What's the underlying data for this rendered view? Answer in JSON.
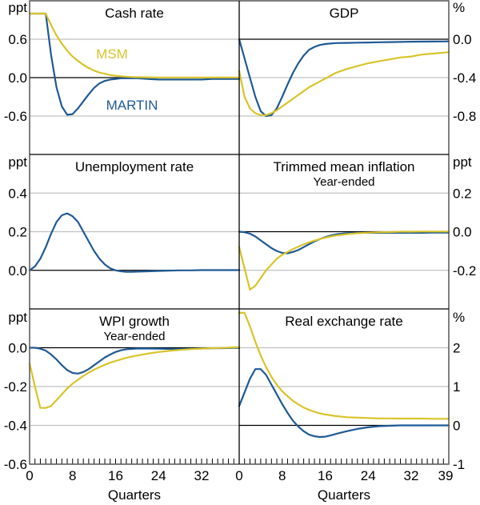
{
  "colors": {
    "martin": "#1f5a96",
    "msm": "#d9c42a",
    "grid": "#c0c0c0",
    "axis": "#000000",
    "frame": "#555555"
  },
  "chart_data": [
    {
      "type": "line",
      "panel": "top-left",
      "title": "Cash rate",
      "subtitle": "",
      "unit": "ppt",
      "unit_side": "left",
      "ylim": [
        -1.2,
        1.2
      ],
      "yticks": [
        0.6,
        0.0,
        -0.6
      ],
      "ytick_labels": [
        "0.6",
        "0.0",
        "-0.6"
      ],
      "grid": true,
      "annotations": [
        {
          "text": "MSM",
          "series": "MSM",
          "x": 15,
          "y": 0.6
        },
        {
          "text": "MARTIN",
          "series": "MARTIN",
          "x": 19,
          "y": -0.68
        }
      ],
      "x": [
        0,
        1,
        2,
        3,
        4,
        5,
        6,
        7,
        8,
        9,
        10,
        11,
        12,
        13,
        14,
        15,
        16,
        17,
        18,
        19,
        20,
        22,
        24,
        26,
        28,
        30,
        32,
        34,
        36,
        38,
        39
      ],
      "series": [
        {
          "name": "MARTIN",
          "values": [
            1.0,
            1.0,
            1.0,
            1.0,
            0.35,
            -0.15,
            -0.45,
            -0.58,
            -0.57,
            -0.48,
            -0.37,
            -0.26,
            -0.16,
            -0.09,
            -0.05,
            -0.03,
            -0.02,
            -0.01,
            -0.01,
            -0.01,
            -0.01,
            -0.02,
            -0.03,
            -0.03,
            -0.03,
            -0.03,
            -0.03,
            -0.02,
            -0.02,
            -0.02,
            -0.02
          ]
        },
        {
          "name": "MSM",
          "values": [
            1.0,
            1.0,
            1.0,
            1.0,
            0.82,
            0.66,
            0.53,
            0.42,
            0.33,
            0.26,
            0.2,
            0.15,
            0.11,
            0.08,
            0.06,
            0.04,
            0.03,
            0.02,
            0.015,
            0.01,
            0.008,
            0.005,
            0.003,
            0.002,
            0.002,
            0.002,
            0.002,
            0.002,
            0.002,
            0.002,
            0.002
          ]
        }
      ]
    },
    {
      "type": "line",
      "panel": "top-right",
      "title": "GDP",
      "subtitle": "",
      "unit": "%",
      "unit_side": "right",
      "ylim": [
        -1.2,
        0.4
      ],
      "yticks": [
        0.0,
        -0.4,
        -0.8
      ],
      "ytick_labels": [
        "0.0",
        "-0.4",
        "-0.8"
      ],
      "grid": true,
      "x": [
        0,
        1,
        2,
        3,
        4,
        5,
        6,
        7,
        8,
        9,
        10,
        11,
        12,
        13,
        14,
        15,
        16,
        17,
        18,
        20,
        22,
        24,
        26,
        28,
        30,
        32,
        34,
        36,
        38,
        39
      ],
      "series": [
        {
          "name": "MARTIN",
          "values": [
            0.0,
            -0.2,
            -0.4,
            -0.6,
            -0.75,
            -0.8,
            -0.79,
            -0.72,
            -0.6,
            -0.47,
            -0.35,
            -0.25,
            -0.17,
            -0.11,
            -0.08,
            -0.06,
            -0.05,
            -0.045,
            -0.04,
            -0.038,
            -0.036,
            -0.034,
            -0.032,
            -0.03,
            -0.028,
            -0.026,
            -0.025,
            -0.024,
            -0.023,
            -0.022
          ]
        },
        {
          "name": "MSM",
          "values": [
            -0.33,
            -0.6,
            -0.72,
            -0.77,
            -0.79,
            -0.79,
            -0.77,
            -0.74,
            -0.7,
            -0.66,
            -0.62,
            -0.58,
            -0.54,
            -0.5,
            -0.47,
            -0.44,
            -0.41,
            -0.38,
            -0.35,
            -0.31,
            -0.28,
            -0.25,
            -0.23,
            -0.21,
            -0.19,
            -0.18,
            -0.16,
            -0.15,
            -0.14,
            -0.135
          ]
        }
      ]
    },
    {
      "type": "line",
      "panel": "middle-left",
      "title": "Unemployment rate",
      "subtitle": "",
      "unit": "ppt",
      "unit_side": "left",
      "ylim": [
        -0.2,
        0.6
      ],
      "yticks": [
        0.4,
        0.2,
        0.0
      ],
      "ytick_labels": [
        "0.4",
        "0.2",
        "0.0"
      ],
      "grid": true,
      "x": [
        0,
        1,
        2,
        3,
        4,
        5,
        6,
        7,
        8,
        9,
        10,
        11,
        12,
        13,
        14,
        15,
        16,
        17,
        18,
        19,
        20,
        22,
        24,
        26,
        28,
        30,
        32,
        34,
        36,
        38,
        39
      ],
      "series": [
        {
          "name": "MARTIN",
          "values": [
            0.0,
            0.02,
            0.06,
            0.12,
            0.19,
            0.25,
            0.285,
            0.295,
            0.28,
            0.25,
            0.2,
            0.15,
            0.1,
            0.06,
            0.03,
            0.01,
            0.0,
            -0.005,
            -0.008,
            -0.008,
            -0.007,
            -0.005,
            -0.003,
            -0.002,
            0.0,
            0.0,
            0.001,
            0.001,
            0.001,
            0.001,
            0.001
          ]
        }
      ]
    },
    {
      "type": "line",
      "panel": "middle-right",
      "title": "Trimmed mean inflation",
      "subtitle": "Year-ended",
      "unit": "ppt",
      "unit_side": "right",
      "ylim": [
        -0.4,
        0.4
      ],
      "yticks": [
        0.2,
        0.0,
        -0.2
      ],
      "ytick_labels": [
        "0.2",
        "0.0",
        "-0.2"
      ],
      "grid": true,
      "x": [
        0,
        1,
        2,
        3,
        4,
        5,
        6,
        7,
        8,
        9,
        10,
        11,
        12,
        13,
        14,
        15,
        16,
        17,
        18,
        20,
        22,
        24,
        26,
        28,
        30,
        32,
        34,
        36,
        38,
        39
      ],
      "series": [
        {
          "name": "MARTIN",
          "values": [
            0.0,
            -0.003,
            -0.01,
            -0.025,
            -0.045,
            -0.065,
            -0.085,
            -0.1,
            -0.11,
            -0.112,
            -0.105,
            -0.095,
            -0.08,
            -0.065,
            -0.05,
            -0.038,
            -0.028,
            -0.02,
            -0.014,
            -0.008,
            -0.006,
            -0.006,
            -0.006,
            -0.006,
            -0.006,
            -0.006,
            -0.006,
            -0.005,
            -0.005,
            -0.005
          ]
        },
        {
          "name": "MSM",
          "values": [
            -0.08,
            -0.19,
            -0.3,
            -0.28,
            -0.24,
            -0.2,
            -0.17,
            -0.14,
            -0.12,
            -0.105,
            -0.09,
            -0.078,
            -0.066,
            -0.055,
            -0.046,
            -0.038,
            -0.031,
            -0.025,
            -0.02,
            -0.013,
            -0.008,
            -0.005,
            -0.003,
            -0.002,
            0.0,
            0.0,
            0.001,
            0.001,
            0.001,
            0.001
          ]
        }
      ]
    },
    {
      "type": "line",
      "panel": "bottom-left",
      "title": "WPI growth",
      "subtitle": "Year-ended",
      "unit": "ppt",
      "unit_side": "left",
      "ylim": [
        -0.6,
        0.2
      ],
      "yticks": [
        0.0,
        -0.2,
        -0.4,
        -0.6
      ],
      "ytick_labels": [
        "0.0",
        "-0.2",
        "-0.4",
        "-0.6"
      ],
      "grid": true,
      "xlabel": "Quarters",
      "xticks": [
        0,
        8,
        16,
        24,
        32
      ],
      "xtick_labels": [
        "0",
        "8",
        "16",
        "24",
        "32"
      ],
      "x": [
        0,
        1,
        2,
        3,
        4,
        5,
        6,
        7,
        8,
        9,
        10,
        11,
        12,
        13,
        14,
        15,
        16,
        17,
        18,
        20,
        22,
        24,
        26,
        28,
        30,
        32,
        34,
        36,
        38,
        39
      ],
      "series": [
        {
          "name": "MARTIN",
          "values": [
            0.0,
            0.0,
            -0.005,
            -0.015,
            -0.035,
            -0.06,
            -0.09,
            -0.115,
            -0.13,
            -0.133,
            -0.125,
            -0.11,
            -0.09,
            -0.07,
            -0.05,
            -0.035,
            -0.022,
            -0.013,
            -0.008,
            -0.004,
            -0.004,
            -0.005,
            -0.006,
            -0.006,
            -0.005,
            -0.004,
            -0.003,
            -0.002,
            -0.001,
            -0.001
          ]
        },
        {
          "name": "MSM",
          "values": [
            -0.08,
            -0.2,
            -0.31,
            -0.31,
            -0.3,
            -0.27,
            -0.24,
            -0.21,
            -0.185,
            -0.165,
            -0.145,
            -0.128,
            -0.113,
            -0.1,
            -0.088,
            -0.077,
            -0.068,
            -0.06,
            -0.052,
            -0.04,
            -0.03,
            -0.022,
            -0.016,
            -0.011,
            -0.007,
            -0.004,
            -0.002,
            -0.001,
            0.002,
            0.003
          ]
        }
      ]
    },
    {
      "type": "line",
      "panel": "bottom-right",
      "title": "Real exchange rate",
      "subtitle": "",
      "unit": "%",
      "unit_side": "right",
      "ylim": [
        -1,
        3
      ],
      "yticks": [
        2,
        1,
        0,
        -1
      ],
      "ytick_labels": [
        "2",
        "1",
        "0",
        "-1"
      ],
      "grid": true,
      "xlabel": "Quarters",
      "xticks": [
        0,
        8,
        16,
        24,
        32,
        39
      ],
      "xtick_labels": [
        "0",
        "8",
        "16",
        "24",
        "32",
        "39"
      ],
      "x": [
        0,
        1,
        2,
        3,
        4,
        5,
        6,
        7,
        8,
        9,
        10,
        11,
        12,
        13,
        14,
        15,
        16,
        17,
        18,
        20,
        22,
        24,
        26,
        28,
        30,
        32,
        34,
        36,
        38,
        39
      ],
      "series": [
        {
          "name": "MARTIN",
          "values": [
            0.5,
            0.85,
            1.2,
            1.45,
            1.45,
            1.3,
            1.05,
            0.8,
            0.55,
            0.32,
            0.12,
            -0.03,
            -0.15,
            -0.24,
            -0.28,
            -0.3,
            -0.29,
            -0.26,
            -0.22,
            -0.15,
            -0.09,
            -0.05,
            -0.02,
            -0.01,
            0.0,
            0.0,
            0.0,
            0.0,
            0.0,
            0.0
          ]
        },
        {
          "name": "MSM",
          "values": [
            2.9,
            2.9,
            2.55,
            2.15,
            1.8,
            1.5,
            1.25,
            1.05,
            0.88,
            0.75,
            0.63,
            0.54,
            0.46,
            0.4,
            0.35,
            0.31,
            0.28,
            0.26,
            0.24,
            0.21,
            0.2,
            0.19,
            0.18,
            0.18,
            0.175,
            0.175,
            0.175,
            0.17,
            0.17,
            0.17
          ]
        }
      ]
    }
  ]
}
